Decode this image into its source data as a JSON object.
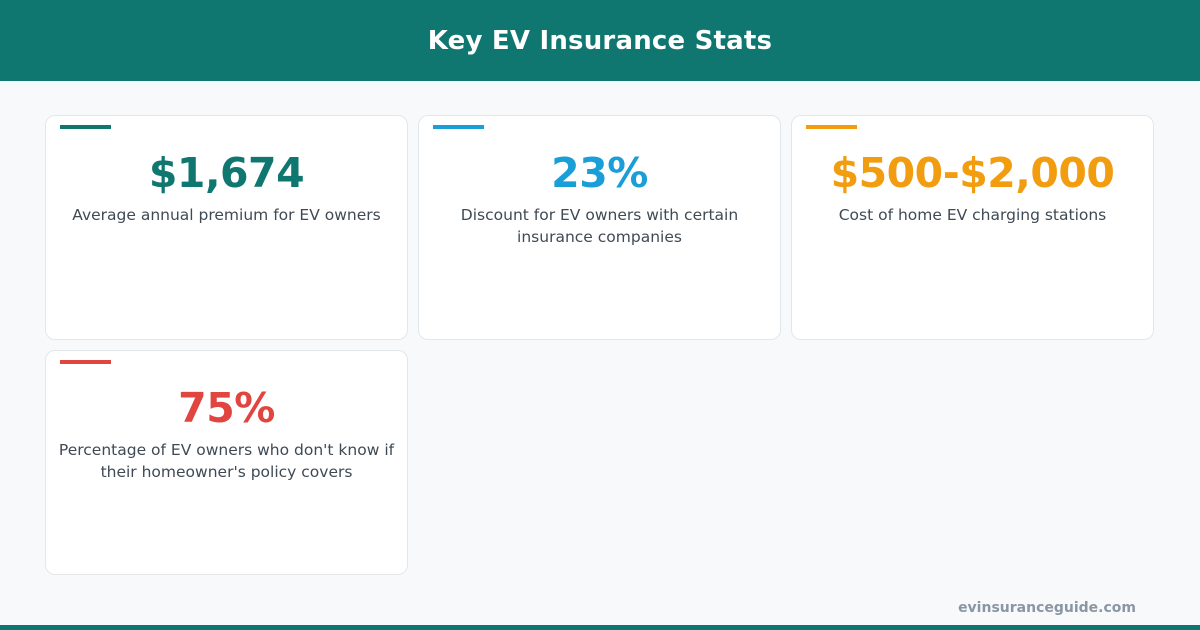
{
  "header": {
    "title": "Key EV Insurance Stats"
  },
  "colors": {
    "brand_teal": "#0f7670",
    "blue": "#1a9ed8",
    "orange": "#f29d0f",
    "red": "#e0453f",
    "text": "#3f4a55",
    "footer_text": "#8a96a3"
  },
  "stats": [
    {
      "value": "$1,674",
      "description": "Average annual premium for EV owners",
      "color": "#0f7670"
    },
    {
      "value": "23%",
      "description": "Discount for EV owners with certain insurance companies",
      "color": "#1a9ed8"
    },
    {
      "value": "$500-$2,000",
      "description": "Cost of home EV charging stations",
      "color": "#f29d0f"
    },
    {
      "value": "75%",
      "description": "Percentage of EV owners who don't know if their homeowner's policy covers",
      "color": "#e0453f"
    }
  ],
  "footer": {
    "site": "evinsuranceguide.com"
  }
}
